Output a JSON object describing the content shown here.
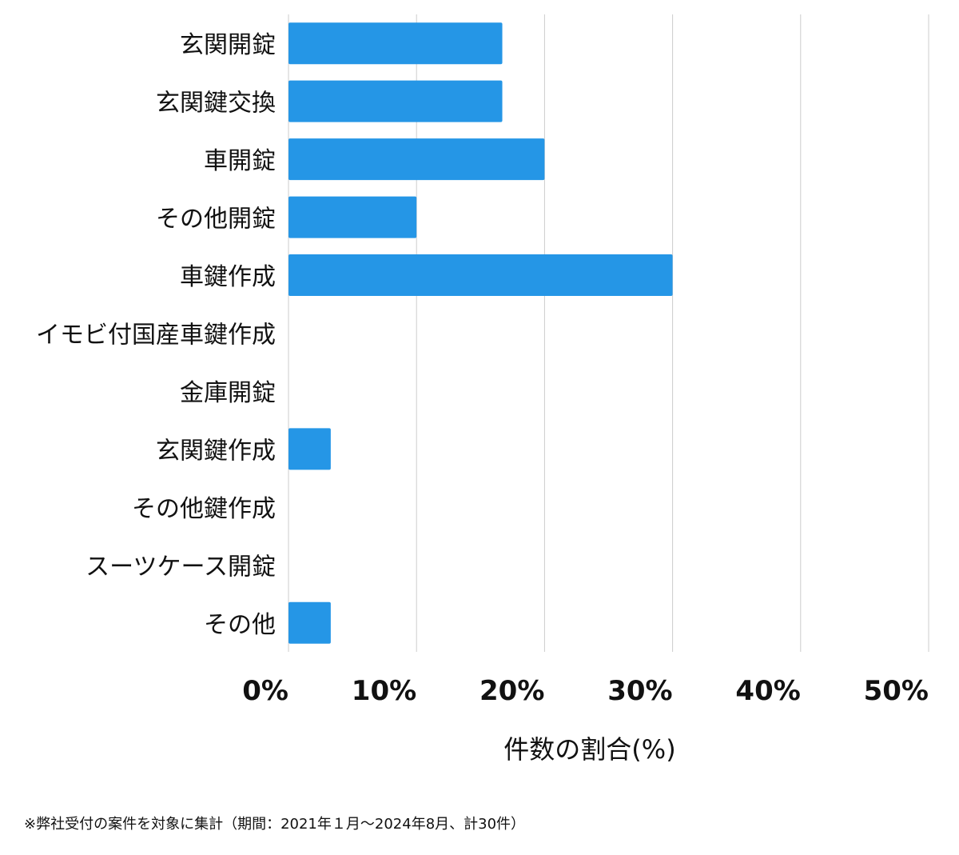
{
  "chart_data": {
    "type": "bar",
    "orientation": "horizontal",
    "categories": [
      "玄関開錠",
      "玄関鍵交換",
      "車開錠",
      "その他開錠",
      "車鍵作成",
      "イモビ付国産車鍵作成",
      "金庫開錠",
      "玄関鍵作成",
      "その他鍵作成",
      "スーツケース開錠",
      "その他"
    ],
    "values": [
      16.7,
      16.7,
      20.0,
      10.0,
      30.0,
      0,
      0,
      3.3,
      0,
      0,
      3.3
    ],
    "xlabel": "件数の割合(%)",
    "ylabel": "",
    "xlim": [
      0,
      50
    ],
    "xticks": [
      0,
      10,
      20,
      30,
      40,
      50
    ],
    "xtick_labels": [
      "0%",
      "10%",
      "20%",
      "30%",
      "40%",
      "50%"
    ],
    "grid": "vertical",
    "bar_color": "#2596e6",
    "grid_color": "#cccccc"
  },
  "footnote": "※弊社受付の案件を対象に集計（期間：2021年１月〜2024年8月、計30件）"
}
